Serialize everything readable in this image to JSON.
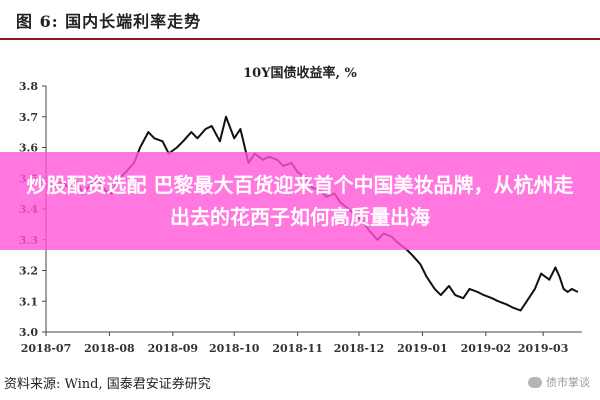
{
  "header": {
    "figure_label": "图 6:  国内长端利率走势"
  },
  "banner": {
    "text": "炒股配资选配 巴黎最大百货迎来首个中国美妆品牌，从杭州走出去的花西子如何高质量出海"
  },
  "footer": {
    "source": "资料来源:  Wind,  国泰君安证券研究",
    "watermark": "债市掌谈"
  },
  "colors": {
    "line": "#111111",
    "header_rule": "#8a1a1a",
    "banner": "#ff55d7"
  },
  "chart_data": {
    "type": "line",
    "title": "10Y国债收益率,  %",
    "xlabel": "",
    "ylabel": "",
    "x_range": [
      "2018-07-01",
      "2019-03-20"
    ],
    "ylim": [
      3.0,
      3.8
    ],
    "y_ticks": [
      3.0,
      3.1,
      3.2,
      3.3,
      3.4,
      3.5,
      3.6,
      3.7,
      3.8
    ],
    "y_tick_labels": [
      "3.0",
      "3.1",
      "3.2",
      "3.3",
      "3.4",
      "3.5",
      "3.6",
      "3.7",
      "3.8"
    ],
    "x_ticks": [
      "2018-07-01",
      "2018-08-01",
      "2018-09-01",
      "2018-10-01",
      "2018-11-01",
      "2018-12-01",
      "2019-01-01",
      "2019-02-01",
      "2019-03-01"
    ],
    "x_tick_labels": [
      "2018-07",
      "2018-08",
      "2018-09",
      "2018-10",
      "2018-11",
      "2018-12",
      "2019-01",
      "2019-02",
      "2019-03"
    ],
    "grid": false,
    "legend": "none",
    "series": [
      {
        "values": [
          [
            "2018-07-02",
            3.49
          ],
          [
            "2018-07-05",
            3.47
          ],
          [
            "2018-07-09",
            3.49
          ],
          [
            "2018-07-12",
            3.47
          ],
          [
            "2018-07-16",
            3.49
          ],
          [
            "2018-07-19",
            3.45
          ],
          [
            "2018-07-23",
            3.48
          ],
          [
            "2018-07-26",
            3.5
          ],
          [
            "2018-07-30",
            3.46
          ],
          [
            "2018-08-02",
            3.45
          ],
          [
            "2018-08-06",
            3.5
          ],
          [
            "2018-08-09",
            3.52
          ],
          [
            "2018-08-13",
            3.55
          ],
          [
            "2018-08-16",
            3.6
          ],
          [
            "2018-08-20",
            3.65
          ],
          [
            "2018-08-23",
            3.63
          ],
          [
            "2018-08-27",
            3.62
          ],
          [
            "2018-08-30",
            3.58
          ],
          [
            "2018-09-03",
            3.6
          ],
          [
            "2018-09-06",
            3.62
          ],
          [
            "2018-09-10",
            3.65
          ],
          [
            "2018-09-13",
            3.63
          ],
          [
            "2018-09-17",
            3.66
          ],
          [
            "2018-09-20",
            3.67
          ],
          [
            "2018-09-24",
            3.62
          ],
          [
            "2018-09-27",
            3.7
          ],
          [
            "2018-10-01",
            3.63
          ],
          [
            "2018-10-04",
            3.66
          ],
          [
            "2018-10-08",
            3.55
          ],
          [
            "2018-10-11",
            3.58
          ],
          [
            "2018-10-15",
            3.56
          ],
          [
            "2018-10-18",
            3.57
          ],
          [
            "2018-10-22",
            3.56
          ],
          [
            "2018-10-25",
            3.54
          ],
          [
            "2018-10-29",
            3.55
          ],
          [
            "2018-11-01",
            3.52
          ],
          [
            "2018-11-05",
            3.5
          ],
          [
            "2018-11-08",
            3.47
          ],
          [
            "2018-11-12",
            3.46
          ],
          [
            "2018-11-15",
            3.44
          ],
          [
            "2018-11-19",
            3.45
          ],
          [
            "2018-11-22",
            3.42
          ],
          [
            "2018-11-26",
            3.4
          ],
          [
            "2018-11-29",
            3.38
          ],
          [
            "2018-12-03",
            3.36
          ],
          [
            "2018-12-06",
            3.33
          ],
          [
            "2018-12-10",
            3.3
          ],
          [
            "2018-12-13",
            3.32
          ],
          [
            "2018-12-17",
            3.31
          ],
          [
            "2018-12-20",
            3.29
          ],
          [
            "2018-12-24",
            3.27
          ],
          [
            "2018-12-27",
            3.25
          ],
          [
            "2018-12-31",
            3.22
          ],
          [
            "2019-01-03",
            3.18
          ],
          [
            "2019-01-07",
            3.14
          ],
          [
            "2019-01-10",
            3.12
          ],
          [
            "2019-01-14",
            3.15
          ],
          [
            "2019-01-17",
            3.12
          ],
          [
            "2019-01-21",
            3.11
          ],
          [
            "2019-01-24",
            3.14
          ],
          [
            "2019-01-28",
            3.13
          ],
          [
            "2019-01-31",
            3.12
          ],
          [
            "2019-02-04",
            3.11
          ],
          [
            "2019-02-07",
            3.1
          ],
          [
            "2019-02-11",
            3.09
          ],
          [
            "2019-02-14",
            3.08
          ],
          [
            "2019-02-18",
            3.07
          ],
          [
            "2019-02-21",
            3.1
          ],
          [
            "2019-02-25",
            3.14
          ],
          [
            "2019-02-28",
            3.19
          ],
          [
            "2019-03-04",
            3.17
          ],
          [
            "2019-03-07",
            3.21
          ],
          [
            "2019-03-09",
            3.18
          ],
          [
            "2019-03-11",
            3.14
          ],
          [
            "2019-03-13",
            3.13
          ],
          [
            "2019-03-15",
            3.14
          ],
          [
            "2019-03-18",
            3.13
          ]
        ]
      }
    ]
  }
}
